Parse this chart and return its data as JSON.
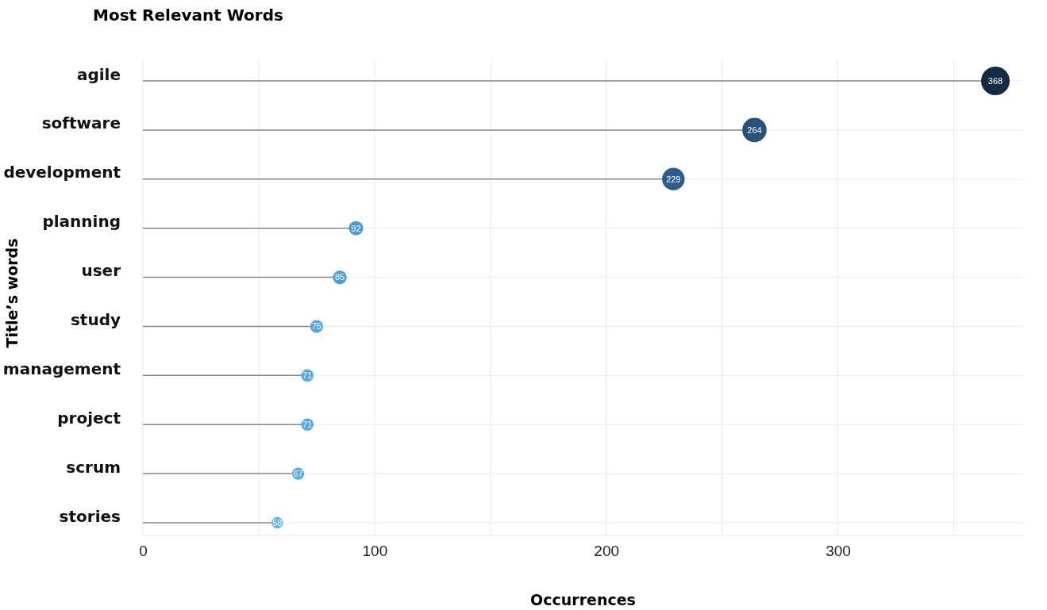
{
  "chart_data": {
    "type": "lollipop",
    "title": "Most Relevant Words",
    "xlabel": "Occurrences",
    "ylabel": "Title’s words",
    "orientation": "horizontal",
    "categories": [
      "agile",
      "software",
      "development",
      "planning",
      "user",
      "study",
      "management",
      "project",
      "scrum",
      "stories"
    ],
    "values": [
      368,
      264,
      229,
      92,
      85,
      75,
      71,
      71,
      67,
      58
    ],
    "sizes": [
      1,
      0.72,
      0.62,
      0.25,
      0.23,
      0.2,
      0.19,
      0.19,
      0.18,
      0.16
    ],
    "colors": [
      "#132b43",
      "#27507a",
      "#2d5d8b",
      "#4a9ad8",
      "#4c9ddd",
      "#52a6e8",
      "#53a9ec",
      "#53a9ec",
      "#54abee",
      "#56b1f7"
    ],
    "xlim": [
      0,
      380
    ],
    "xticks": [
      0,
      {
        "value": 50,
        "label": null
      },
      100,
      {
        "value": 150,
        "label": null
      },
      200,
      {
        "value": 250,
        "label": null
      },
      300,
      {
        "value": 350,
        "label": null
      }
    ],
    "grid": true,
    "data_labels": true,
    "marker": "circle"
  }
}
